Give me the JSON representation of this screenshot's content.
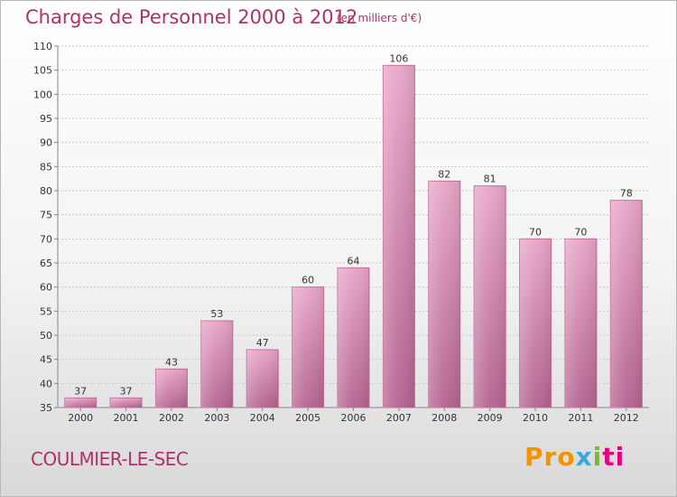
{
  "header": {
    "title": "Charges de Personnel 2000 à 2012",
    "unit": "(en milliers d'€)"
  },
  "footer": {
    "city": "COULMIER-LE-SEC",
    "logo_parts": [
      "Pro",
      "x",
      "i",
      "ti"
    ],
    "logo_colors": [
      "#f29400",
      "#39a9dc",
      "#7ab929",
      "#e6007e"
    ]
  },
  "chart_data": {
    "type": "bar",
    "title": "Charges de Personnel 2000 à 2012",
    "subtitle": "(en milliers d'€)",
    "categories": [
      "2000",
      "2001",
      "2002",
      "2003",
      "2004",
      "2005",
      "2006",
      "2007",
      "2008",
      "2009",
      "2010",
      "2011",
      "2012"
    ],
    "values": [
      37,
      37,
      43,
      53,
      47,
      60,
      64,
      106,
      82,
      81,
      70,
      70,
      78
    ],
    "ylim": [
      35,
      110
    ],
    "yticks": [
      35,
      40,
      45,
      50,
      55,
      60,
      65,
      70,
      75,
      80,
      85,
      90,
      95,
      100,
      105,
      110
    ],
    "grid": true,
    "bar_color": "#d9689f"
  }
}
